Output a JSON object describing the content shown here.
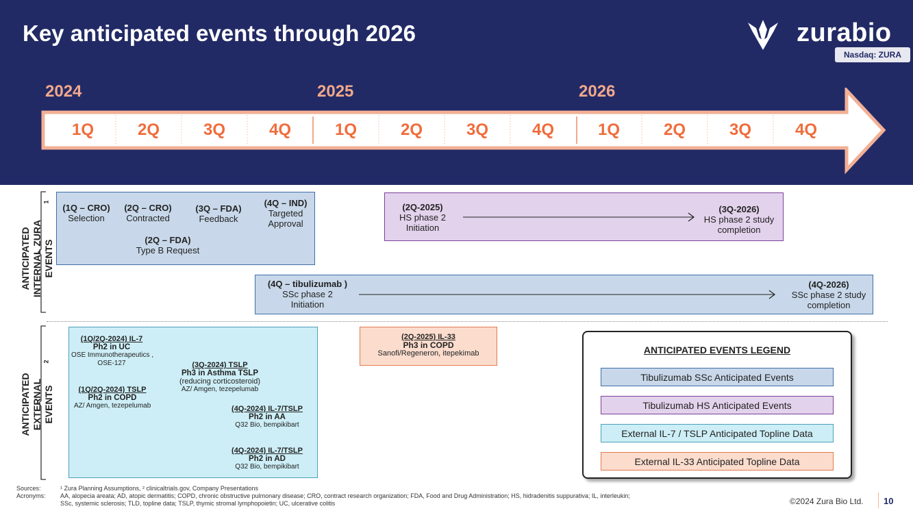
{
  "title": "Key anticipated events through 2026",
  "brand": {
    "name": "zurabio",
    "ticker": "Nasdaq: ZURA"
  },
  "timeline": {
    "years": [
      "2024",
      "2025",
      "2026"
    ],
    "quarters": [
      "1Q",
      "2Q",
      "3Q",
      "4Q",
      "1Q",
      "2Q",
      "3Q",
      "4Q",
      "1Q",
      "2Q",
      "3Q",
      "4Q"
    ]
  },
  "sections": {
    "internal": "ANTICIPATED INTERNAL ZURA EVENTS",
    "internal_sup": "1",
    "external": "ANTICIPATED EXTERNAL EVENTS",
    "external_sup": "2"
  },
  "internal_events": {
    "e1": {
      "title": "(1Q – CRO)",
      "desc": "Selection"
    },
    "e2": {
      "title": "(2Q – CRO)",
      "desc": "Contracted"
    },
    "e3": {
      "title": "(3Q – FDA)",
      "desc": "Feedback"
    },
    "e4": {
      "title": "(4Q – IND)",
      "desc1": "Targeted",
      "desc2": "Approval"
    },
    "e5": {
      "title": "(2Q – FDA)",
      "desc": "Type B Request"
    },
    "hs_start": {
      "title": "(2Q-2025)",
      "desc1": "HS phase 2",
      "desc2": "Initiation"
    },
    "hs_end": {
      "title": "(3Q-2026)",
      "desc1": "HS phase 2 study",
      "desc2": "completion"
    },
    "ssc_start": {
      "title": "(4Q – tibulizumab )",
      "desc1": "SSc phase 2",
      "desc2": "Initiation"
    },
    "ssc_end": {
      "title": "(4Q-2026)",
      "desc1": "SSc phase 2 study",
      "desc2": "completion"
    }
  },
  "external_events": {
    "x1": {
      "h": "(1Q/2Q-2024) IL-7",
      "s": "Ph2 in UC",
      "d1": "OSE Immunotherapeutics ,",
      "d2": "OSE-127"
    },
    "x2": {
      "h": "(3Q-2024) TSLP",
      "s": "Ph3 in Asthma  TSLP",
      "d1": "(reducing corticosteroid)",
      "d2": "AZ/ Amgen, tezepelumab"
    },
    "x3": {
      "h": "(1Q/2Q-2024) TSLP",
      "s": "Ph2 in COPD",
      "d1": "AZ/ Amgen, tezepelumab"
    },
    "x4": {
      "h": "(4Q-2024) IL-7/TSLP",
      "s": "Ph2 in AA",
      "d1": "Q32 Bio, bempikibart"
    },
    "x5": {
      "h": "(4Q-2024) IL-7/TSLP",
      "s": "Ph2 in AD",
      "d1": "Q32 Bio, bempikibart"
    },
    "x6": {
      "h": "(2Q-2025) IL-33",
      "s": "Ph3 in COPD",
      "d1": "Sanofi/Regeneron, itepekimab"
    }
  },
  "legend": {
    "title": "ANTICIPATED EVENTS LEGEND",
    "items": [
      "Tibulizumab SSc Anticipated Events",
      "Tibulizumab HS Anticipated Events",
      "External IL-7 / TSLP Anticipated Topline Data",
      "External IL-33 Anticipated Topline Data"
    ]
  },
  "footer": {
    "sources_label": "Sources:",
    "sources": "¹ Zura Planning Assumptions, ² clinicaltrials.gov, Company Presentations",
    "acronyms_label": "Acronyms:",
    "acronyms1": "AA, alopecia areata; AD, atopic dermatitis; COPD, chronic obstructive pulmonary disease; CRO, contract research organization; FDA, Food and Drug Administration; HS, hidradenitis suppurativa; IL, interleukin;",
    "acronyms2": "SSc, systemic sclerosis; TLD, topline data; TSLP, thymic stromal lymphopoietin; UC, ulcerative colitis",
    "copyright": "©2024 Zura Bio Ltd.",
    "page": "10"
  },
  "colors": {
    "header_bg": "#222a66",
    "ssc": "#c8d8ea",
    "hs": "#e3d2ec",
    "il7_tslp": "#cdeef6",
    "il33": "#fbdccd",
    "quarter_text": "#ef6d3b"
  }
}
